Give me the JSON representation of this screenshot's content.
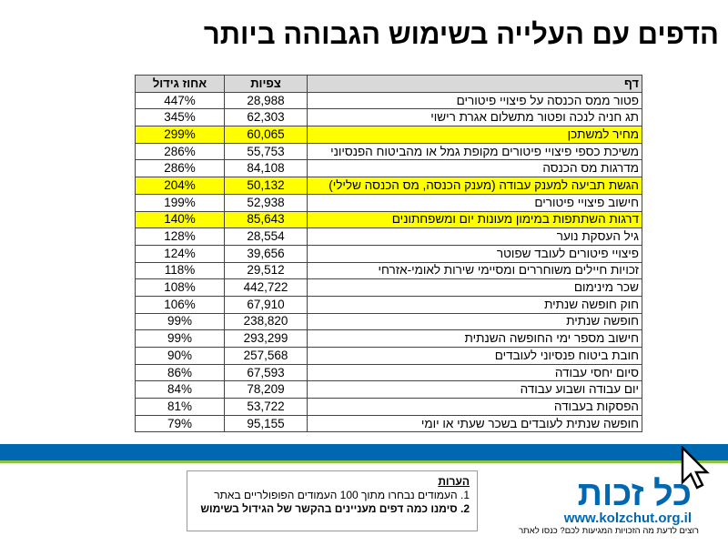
{
  "title": "הדפים עם העלייה בשימוש הגבוהה ביותר",
  "table": {
    "headers": {
      "page": "דף",
      "views": "צפיות",
      "growth": "אחוז גידול"
    },
    "highlight_color": "#ffff00",
    "rows": [
      {
        "page": "פטור ממס הכנסה על פיצויי פיטורים",
        "views": "28,988",
        "growth": "447%",
        "highlighted": false
      },
      {
        "page": "תג חניה לנכה ופטור מתשלום אגרת רישוי",
        "views": "62,303",
        "growth": "345%",
        "highlighted": false
      },
      {
        "page": "מחיר למשתכן",
        "views": "60,065",
        "growth": "299%",
        "highlighted": true
      },
      {
        "page": "משיכת כספי פיצויי פיטורים מקופת גמל או מהביטוח הפנסיוני",
        "views": "55,753",
        "growth": "286%",
        "highlighted": false
      },
      {
        "page": "מדרגות מס הכנסה",
        "views": "84,108",
        "growth": "286%",
        "highlighted": false
      },
      {
        "page": "הגשת תביעה למענק עבודה (מענק הכנסה, מס הכנסה שלילי)",
        "views": "50,132",
        "growth": "204%",
        "highlighted": true
      },
      {
        "page": "חישוב פיצויי פיטורים",
        "views": "52,938",
        "growth": "199%",
        "highlighted": false
      },
      {
        "page": "דרגות השתתפות במימון מעונות יום ומשפחתונים",
        "views": "85,643",
        "growth": "140%",
        "highlighted": true
      },
      {
        "page": "גיל העסקת נוער",
        "views": "28,554",
        "growth": "128%",
        "highlighted": false
      },
      {
        "page": "פיצויי פיטורים לעובד שפוטר",
        "views": "39,656",
        "growth": "124%",
        "highlighted": false
      },
      {
        "page": "זכויות חיילים משוחררים ומסיימי שירות לאומי-אזרחי",
        "views": "29,512",
        "growth": "118%",
        "highlighted": false
      },
      {
        "page": "שכר מינימום",
        "views": "442,722",
        "growth": "108%",
        "highlighted": false
      },
      {
        "page": "חוק חופשה שנתית",
        "views": "67,910",
        "growth": "106%",
        "highlighted": false
      },
      {
        "page": "חופשה שנתית",
        "views": "238,820",
        "growth": "99%",
        "highlighted": false
      },
      {
        "page": "חישוב מספר ימי החופשה השנתית",
        "views": "293,299",
        "growth": "99%",
        "highlighted": false
      },
      {
        "page": "חובת ביטוח פנסיוני לעובדים",
        "views": "257,568",
        "growth": "90%",
        "highlighted": false
      },
      {
        "page": "סיום יחסי עבודה",
        "views": "67,593",
        "growth": "86%",
        "highlighted": false
      },
      {
        "page": "יום עבודה ושבוע עבודה",
        "views": "78,209",
        "growth": "84%",
        "highlighted": false
      },
      {
        "page": "הפסקות בעבודה",
        "views": "53,722",
        "growth": "81%",
        "highlighted": false
      },
      {
        "page": "חופשה שנתית לעובדים בשכר שעתי או יומי",
        "views": "95,155",
        "growth": "79%",
        "highlighted": false
      }
    ]
  },
  "notes": {
    "heading": "הערות",
    "items": [
      "1. העמודים נבחרו מתוך 100 העמודים הפופולריים באתר",
      "2. סימנו כמה דפים מעניינים בהקשר של הגידול בשימוש"
    ]
  },
  "logo": {
    "brand": "כל זכות",
    "url": "www.kolzchut.org.il",
    "tagline": "רוצים לדעת מה הזכויות המגיעות לכם? כנסו לאתר"
  },
  "colors": {
    "band": "#0067b1",
    "accent_line": "#8dc63f"
  }
}
